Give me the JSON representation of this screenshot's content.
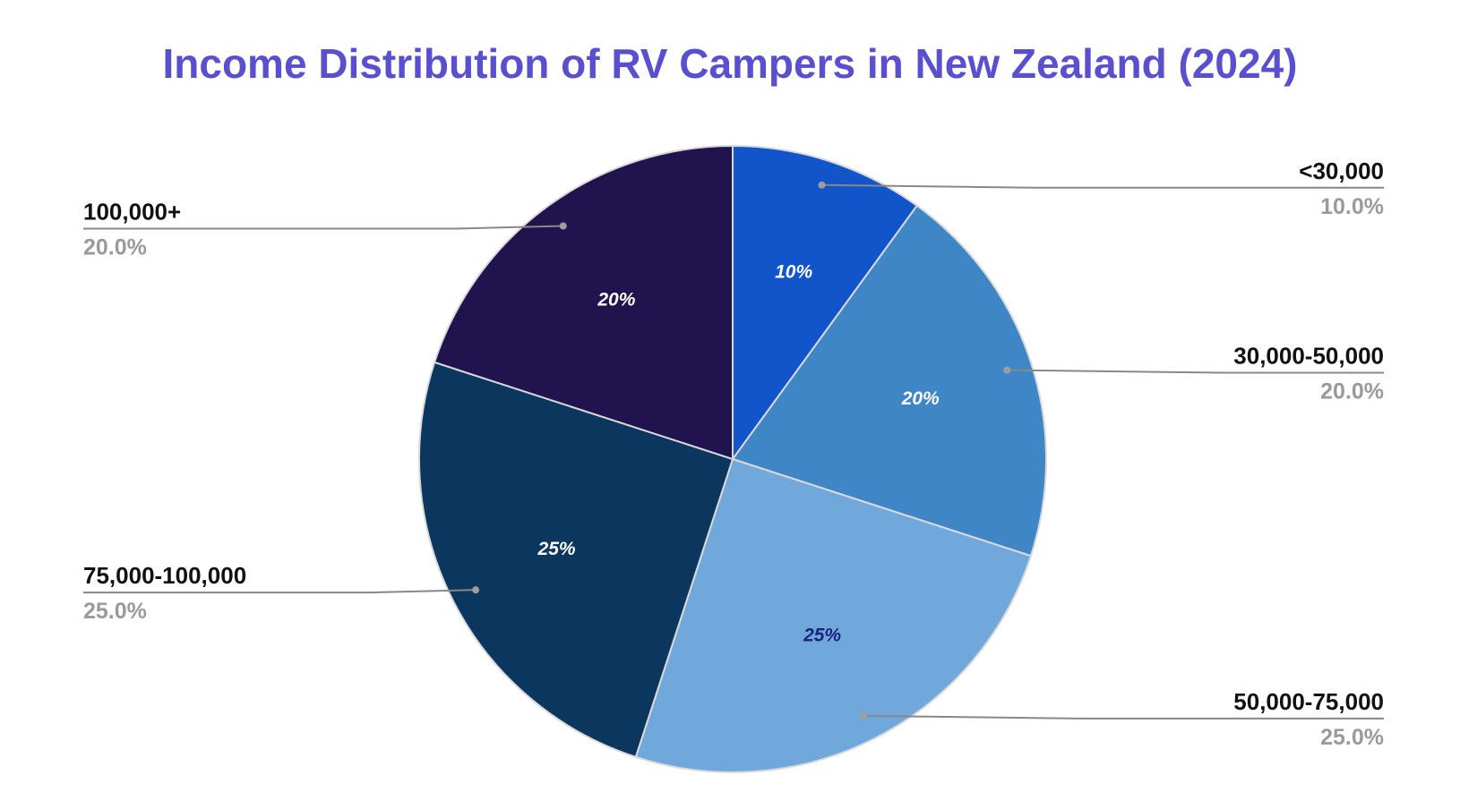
{
  "chart_data": {
    "type": "pie",
    "title": "Income Distribution of RV Campers in New Zealand (2024)",
    "start_angle_deg": 0,
    "direction": "clockwise",
    "slices": [
      {
        "label": "<30,000",
        "value": 10,
        "slice_label": "10%",
        "legend_value": "10.0%",
        "color": "#1254c9",
        "text_color": "#ffffff",
        "side": "right"
      },
      {
        "label": "30,000-50,000",
        "value": 20,
        "slice_label": "20%",
        "legend_value": "20.0%",
        "color": "#3f86c6",
        "text_color": "#ffffff",
        "side": "right"
      },
      {
        "label": "50,000-75,000",
        "value": 25,
        "slice_label": "25%",
        "legend_value": "25.0%",
        "color": "#70a8dc",
        "text_color": "#1a237e",
        "side": "right"
      },
      {
        "label": "75,000-100,000",
        "value": 25,
        "slice_label": "25%",
        "legend_value": "25.0%",
        "color": "#0b365e",
        "text_color": "#ffffff",
        "side": "left"
      },
      {
        "label": "100,000+",
        "value": 20,
        "slice_label": "20%",
        "legend_value": "20.0%",
        "color": "#21134d",
        "text_color": "#ffffff",
        "side": "left"
      }
    ]
  }
}
